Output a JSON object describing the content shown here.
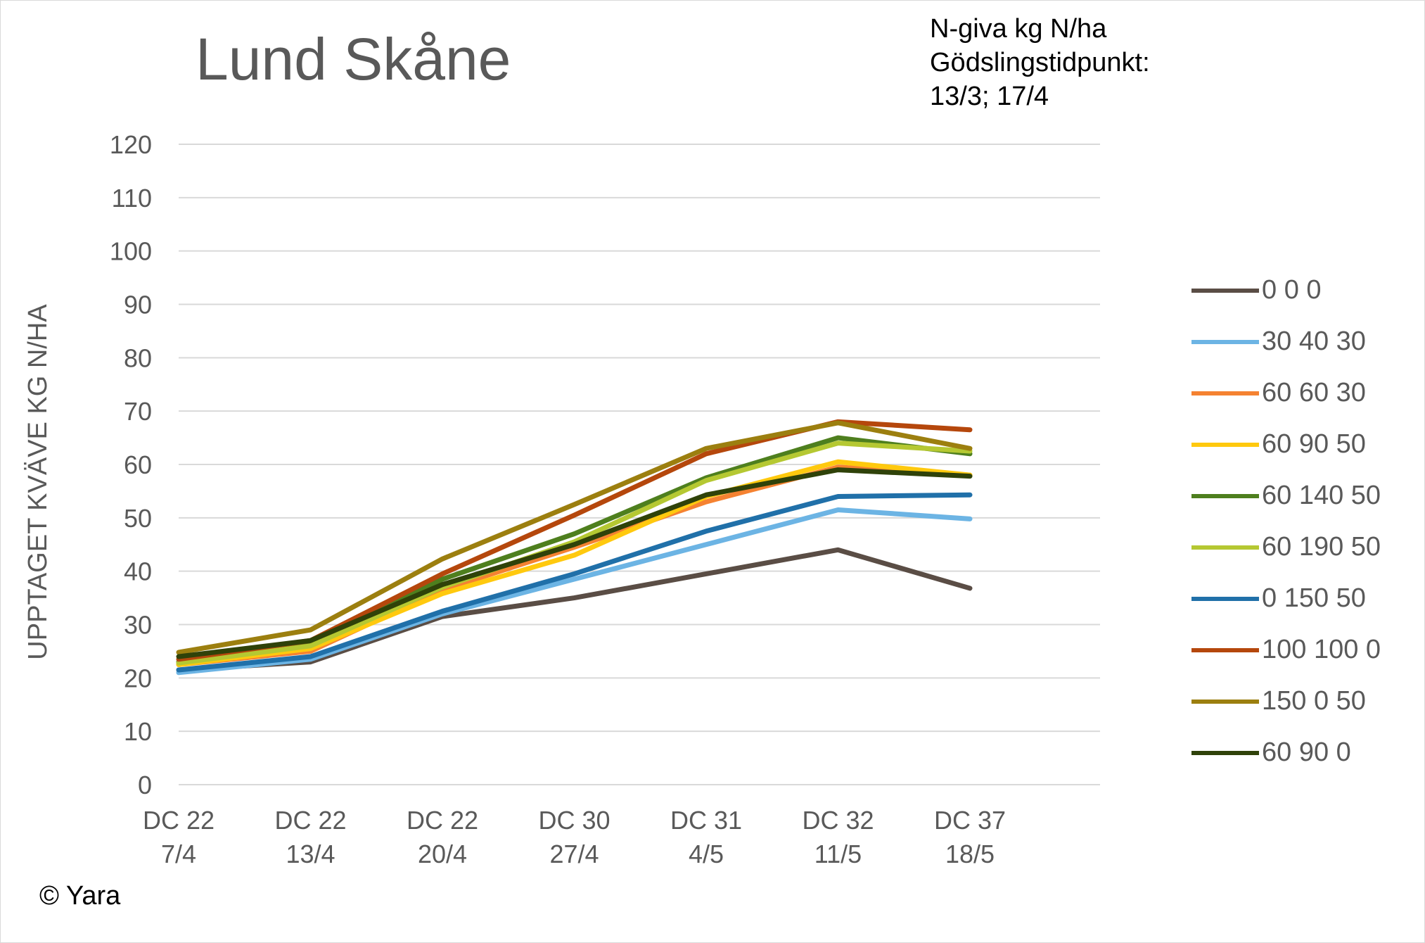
{
  "title": "Lund Skåne",
  "notes": [
    "N-giva kg N/ha",
    "Gödslingstidpunkt:",
    "13/3; 17/4"
  ],
  "copyright": "© Yara",
  "chart_data": {
    "type": "line",
    "title": "Lund Skåne",
    "ylabel": "UPPTAGET KVÄVE KG N/HA",
    "xlabel": "",
    "ylim": [
      0,
      120
    ],
    "yticks": [
      0,
      10,
      20,
      30,
      40,
      50,
      60,
      70,
      80,
      90,
      100,
      110,
      120
    ],
    "grid": true,
    "legend_position": "right",
    "categories": [
      [
        "DC 22",
        "7/4"
      ],
      [
        "DC 22",
        "13/4"
      ],
      [
        "DC 22",
        "20/4"
      ],
      [
        "DC 30",
        "27/4"
      ],
      [
        "DC 31",
        "4/5"
      ],
      [
        "DC 32",
        "11/5"
      ],
      [
        "DC 37",
        "18/5"
      ]
    ],
    "series": [
      {
        "name": "0 0 0",
        "color": "#5a4d45",
        "values": [
          21.5,
          23.0,
          31.5,
          35.0,
          39.5,
          44.0,
          36.8
        ]
      },
      {
        "name": "30 40 30",
        "color": "#6cb4e4",
        "values": [
          21.0,
          23.5,
          32.0,
          38.5,
          45.0,
          51.5,
          49.8
        ]
      },
      {
        "name": "60 60 30",
        "color": "#f58231",
        "values": [
          22.5,
          25.0,
          36.5,
          44.5,
          53.0,
          59.5,
          58.0
        ]
      },
      {
        "name": "60 90 50",
        "color": "#ffc90e",
        "values": [
          22.5,
          25.5,
          35.8,
          43.0,
          54.0,
          60.5,
          58.0
        ]
      },
      {
        "name": "60 140 50",
        "color": "#4e7f1e",
        "values": [
          23.0,
          26.5,
          38.5,
          47.0,
          57.5,
          65.0,
          62.0
        ]
      },
      {
        "name": "60 190 50",
        "color": "#b5c832",
        "values": [
          22.8,
          26.0,
          37.0,
          45.5,
          57.0,
          64.0,
          62.5
        ]
      },
      {
        "name": "0 150 50",
        "color": "#2070a9",
        "values": [
          21.5,
          24.0,
          32.5,
          39.5,
          47.5,
          54.0,
          54.3
        ]
      },
      {
        "name": "100 100 0",
        "color": "#b5470c",
        "values": [
          23.5,
          27.0,
          39.5,
          50.5,
          62.0,
          68.0,
          66.5
        ]
      },
      {
        "name": "150 0 50",
        "color": "#9c7f0f",
        "values": [
          24.8,
          29.0,
          42.3,
          52.5,
          63.0,
          67.8,
          63.0
        ]
      },
      {
        "name": "60 90 0",
        "color": "#2f4209",
        "values": [
          24.0,
          27.0,
          37.5,
          45.0,
          54.3,
          59.0,
          57.8
        ]
      }
    ]
  }
}
